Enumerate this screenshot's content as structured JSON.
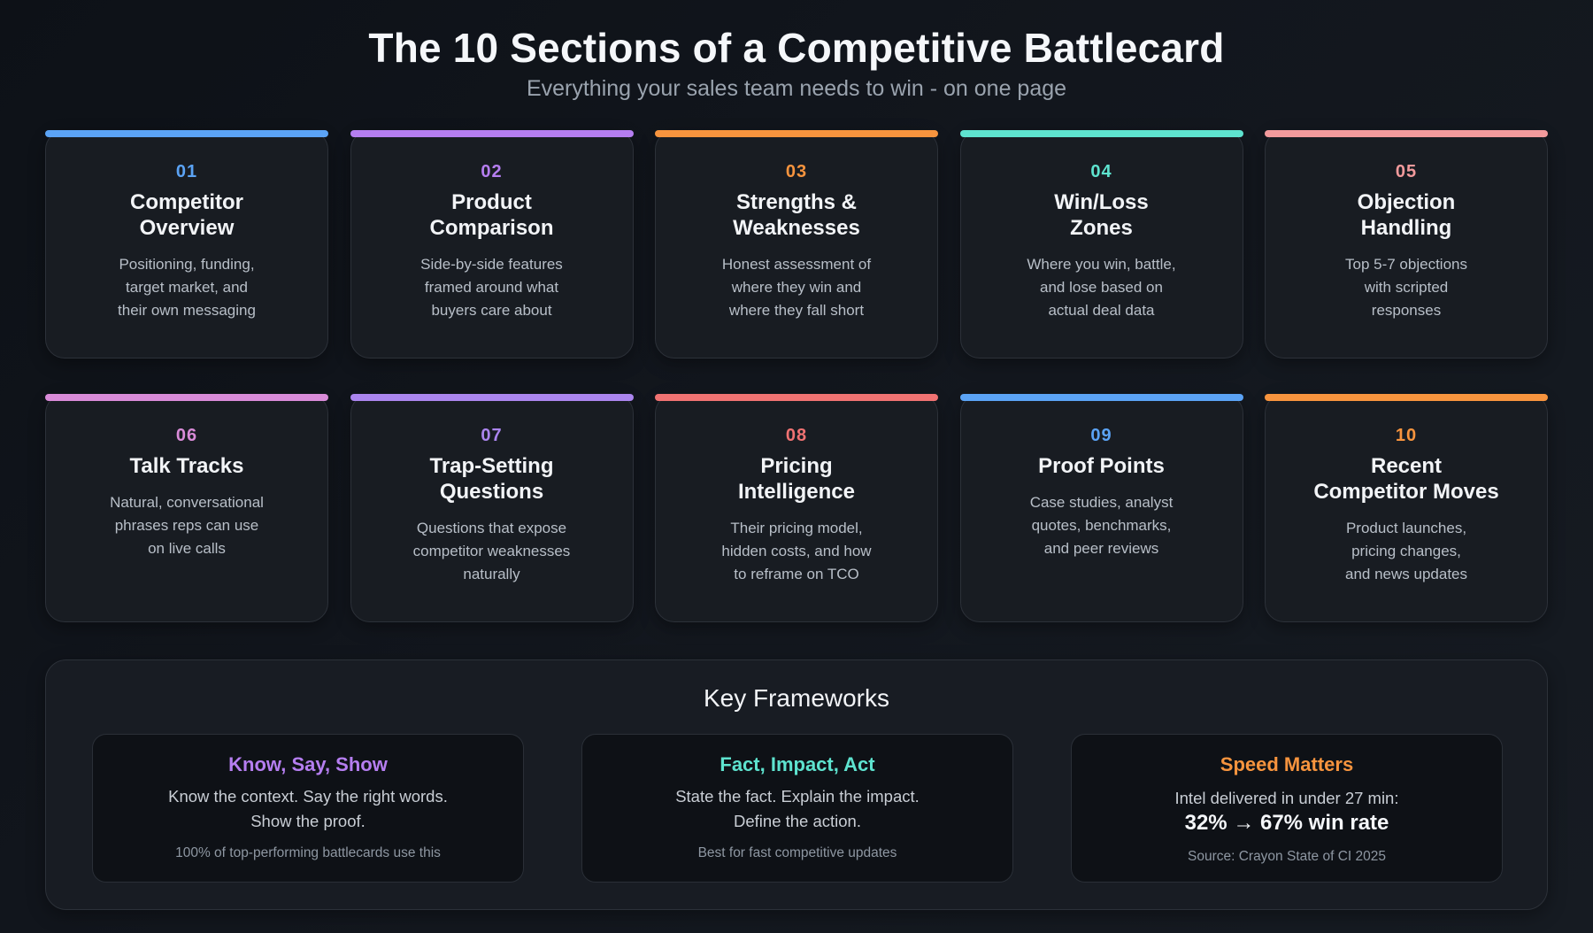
{
  "header": {
    "title": "The 10 Sections of a Competitive Battlecard",
    "subtitle": "Everything your sales team needs to win - on one page"
  },
  "sections": [
    {
      "number": "01",
      "title": "Competitor\nOverview",
      "description": "Positioning, funding,\ntarget market, and\ntheir own messaging",
      "color": "#5ba3f5"
    },
    {
      "number": "02",
      "title": "Product\nComparison",
      "description": "Side-by-side features\nframed around what\nbuyers care about",
      "color": "#b57ef0"
    },
    {
      "number": "03",
      "title": "Strengths &\nWeaknesses",
      "description": "Honest assessment of\nwhere they win and\nwhere they fall short",
      "color": "#f7943e"
    },
    {
      "number": "04",
      "title": "Win/Loss\nZones",
      "description": "Where you win, battle,\nand lose based on\nactual deal data",
      "color": "#5ee3cf"
    },
    {
      "number": "05",
      "title": "Objection\nHandling",
      "description": "Top 5-7 objections\nwith scripted\nresponses",
      "color": "#f29a9c"
    },
    {
      "number": "06",
      "title": "Talk Tracks",
      "description": "Natural, conversational\nphrases reps can use\non live calls",
      "color": "#d98bd8"
    },
    {
      "number": "07",
      "title": "Trap-Setting\nQuestions",
      "description": "Questions that expose\ncompetitor weaknesses\nnaturally",
      "color": "#ab85ee"
    },
    {
      "number": "08",
      "title": "Pricing\nIntelligence",
      "description": "Their pricing model,\nhidden costs, and how\nto reframe on TCO",
      "color": "#f07272"
    },
    {
      "number": "09",
      "title": "Proof Points",
      "description": "Case studies, analyst\nquotes, benchmarks,\nand peer reviews",
      "color": "#5ba3f5"
    },
    {
      "number": "10",
      "title": "Recent\nCompetitor Moves",
      "description": "Product launches,\npricing changes,\nand news updates",
      "color": "#f7943e"
    }
  ],
  "frameworks": {
    "title": "Key Frameworks",
    "items": [
      {
        "name": "Know, Say, Show",
        "body": "Know the context. Say the right words.\nShow the proof.",
        "note": "100% of top-performing battlecards use this",
        "color": "#b57ef0"
      },
      {
        "name": "Fact, Impact, Act",
        "body": "State the fact. Explain the impact.\nDefine the action.",
        "note": "Best for fast competitive updates",
        "color": "#5ee3cf"
      },
      {
        "name": "Speed Matters",
        "body": "Intel delivered in under 27 min:",
        "stat": "32% → 67% win rate",
        "note": "Source: Crayon State of CI 2025",
        "color": "#f7943e"
      }
    ]
  }
}
